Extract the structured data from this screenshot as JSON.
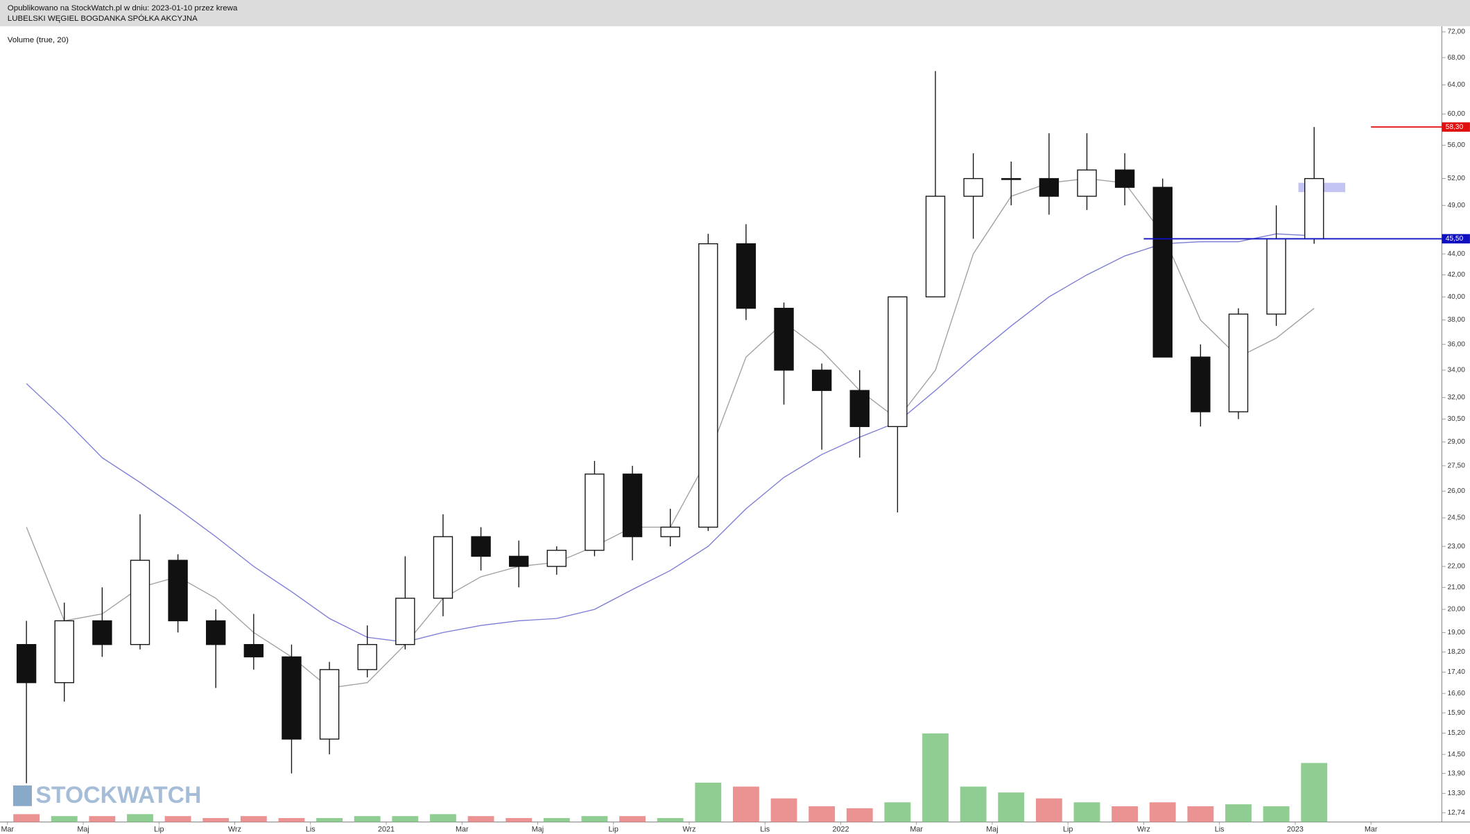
{
  "chart_data": {
    "type": "candlestick",
    "subtitle": "Opublikowano na StockWatch.pl w dniu: 2023-01-10 przez krewa",
    "title": "LUBELSKI WĘGIEL BOGDANKA SPÓŁKA AKCYJNA",
    "indicator_label": "Volume (true, 20)",
    "watermark": "STOCKWATCH",
    "categories": [
      "Mar",
      null,
      "Maj",
      null,
      "Lip",
      null,
      "Wrz",
      null,
      "Lis",
      null,
      "2021",
      null,
      "Mar",
      null,
      "Maj",
      null,
      "Lip",
      null,
      "Wrz",
      null,
      "Lis",
      null,
      "2022",
      null,
      "Mar",
      null,
      "Maj",
      null,
      "Lip",
      null,
      "Wrz",
      null,
      "Lis",
      null,
      "2023",
      null,
      "Mar"
    ],
    "open": [
      18.5,
      17,
      19.5,
      18.5,
      22.3,
      19.5,
      18.5,
      18,
      15,
      17.5,
      18.5,
      20.5,
      23.5,
      22.5,
      22,
      22.8,
      27,
      23.5,
      24,
      45,
      39,
      34,
      32.5,
      30,
      40,
      50,
      52,
      52,
      50,
      53,
      51,
      35,
      31,
      38.5,
      45.5,
      null,
      null
    ],
    "high": [
      19.5,
      20.3,
      21,
      24.7,
      22.6,
      20,
      19.8,
      18.5,
      17.8,
      19.3,
      22.5,
      24.7,
      24,
      23.3,
      23,
      27.8,
      27.5,
      25,
      46,
      47,
      39.5,
      34.5,
      34,
      40,
      66,
      55,
      54,
      57.5,
      57.5,
      55,
      52,
      36,
      39,
      49,
      58.3,
      null,
      null
    ],
    "low": [
      13.6,
      16.3,
      18,
      18.3,
      19,
      16.8,
      17.5,
      13.9,
      14.5,
      17.2,
      18.3,
      19.7,
      21.8,
      21,
      21.6,
      22.5,
      22.3,
      23,
      23.8,
      38,
      31.5,
      28.5,
      28,
      24.8,
      40,
      45.5,
      49,
      48,
      48.5,
      49,
      35,
      30,
      30.5,
      37.5,
      45,
      null,
      null
    ],
    "close": [
      17,
      19.5,
      18.5,
      22.3,
      19.5,
      18.5,
      18,
      15,
      17.5,
      18.5,
      20.5,
      23.5,
      22.5,
      22,
      22.8,
      27,
      23.5,
      24,
      45,
      39,
      34,
      32.5,
      30,
      40,
      50,
      52,
      52,
      50,
      53,
      51,
      35,
      31,
      38.5,
      45.5,
      52,
      null,
      null
    ],
    "candle_color": "#111111",
    "moving_averages": [
      {
        "color": "#a0a0a0",
        "values": [
          24,
          19.5,
          19.8,
          21,
          21.5,
          20.5,
          19,
          18,
          16.8,
          17,
          18.5,
          20.5,
          21.5,
          22,
          22.2,
          23,
          24,
          24,
          28,
          35,
          37.8,
          35.5,
          32.5,
          30.5,
          34,
          44,
          50,
          51.5,
          52,
          51.5,
          46,
          38,
          35,
          36.5,
          39,
          null,
          null
        ]
      },
      {
        "color": "#7b7bd6",
        "values": [
          33,
          30.5,
          28,
          26.5,
          25,
          23.5,
          22,
          20.8,
          19.6,
          18.8,
          18.6,
          19,
          19.3,
          19.5,
          19.6,
          20,
          20.9,
          21.8,
          23,
          25,
          26.8,
          28.2,
          29.3,
          30.3,
          32.5,
          35,
          37.5,
          40,
          42,
          43.8,
          45,
          45.2,
          45.2,
          46,
          45.8,
          null,
          null
        ]
      }
    ],
    "volume": {
      "values": [
        4,
        3,
        3,
        4,
        3,
        2,
        3,
        2,
        2,
        3,
        3,
        4,
        3,
        2,
        2,
        3,
        3,
        2,
        20,
        18,
        12,
        8,
        7,
        10,
        45,
        18,
        15,
        12,
        10,
        8,
        10,
        8,
        9,
        8,
        30,
        null,
        null
      ],
      "vlim": [
        0,
        100
      ],
      "up_color": "#7cc47f",
      "down_color": "#e88080"
    },
    "log_scale": true,
    "ylim": [
      12.48,
      72.9
    ],
    "yticks": [
      {
        "value": 72,
        "label": "72,00"
      },
      {
        "value": 68,
        "label": "68,00"
      },
      {
        "value": 64,
        "label": "64,00"
      },
      {
        "value": 60,
        "label": "60,00"
      },
      {
        "value": 56,
        "label": "56,00"
      },
      {
        "value": 52,
        "label": "52,00"
      },
      {
        "value": 49,
        "label": "49,00"
      },
      {
        "value": 44,
        "label": "44,00"
      },
      {
        "value": 42,
        "label": "42,00"
      },
      {
        "value": 40,
        "label": "40,00"
      },
      {
        "value": 38,
        "label": "38,00"
      },
      {
        "value": 36,
        "label": "36,00"
      },
      {
        "value": 34,
        "label": "34,00"
      },
      {
        "value": 32,
        "label": "32,00"
      },
      {
        "value": 30.5,
        "label": "30,50"
      },
      {
        "value": 29,
        "label": "29,00"
      },
      {
        "value": 27.5,
        "label": "27,50"
      },
      {
        "value": 26,
        "label": "26,00"
      },
      {
        "value": 24.5,
        "label": "24,50"
      },
      {
        "value": 23,
        "label": "23,00"
      },
      {
        "value": 22,
        "label": "22,00"
      },
      {
        "value": 21,
        "label": "21,00"
      },
      {
        "value": 20,
        "label": "20,00"
      },
      {
        "value": 19,
        "label": "19,00"
      },
      {
        "value": 18.2,
        "label": "18,20"
      },
      {
        "value": 17.4,
        "label": "17,40"
      },
      {
        "value": 16.6,
        "label": "16,60"
      },
      {
        "value": 15.9,
        "label": "15,90"
      },
      {
        "value": 15.2,
        "label": "15,20"
      },
      {
        "value": 14.5,
        "label": "14,50"
      },
      {
        "value": 13.9,
        "label": "13,90"
      },
      {
        "value": 13.3,
        "label": "13,30"
      },
      {
        "value": 12.74,
        "label": "12,74"
      }
    ],
    "levels": [
      {
        "value": 58.3,
        "label": "58,30",
        "color": "#e01010",
        "from": "Mar"
      },
      {
        "value": 45.5,
        "label": "45,50",
        "color": "#1010c0",
        "from": "Wrz"
      }
    ]
  }
}
